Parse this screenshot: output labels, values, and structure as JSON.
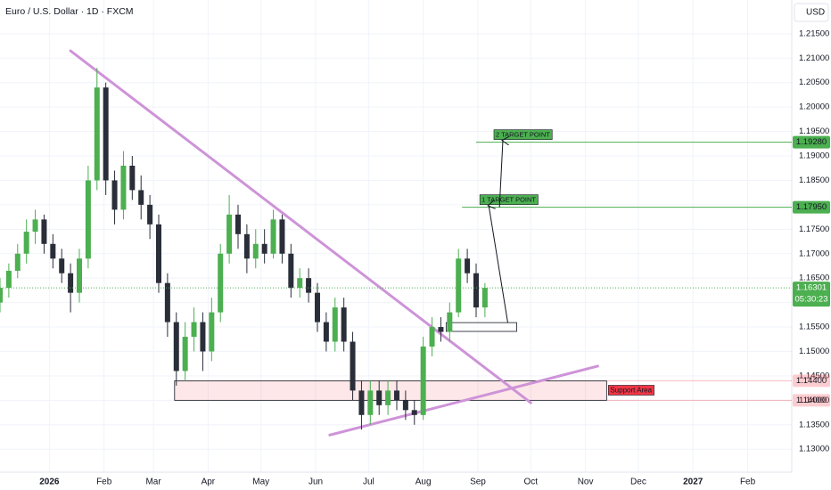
{
  "chart_data": {
    "type": "candlestick",
    "title": "Euro / U.S. Dollar · 1D · FXCM",
    "currency": "USD",
    "x": [
      -28,
      -23,
      -18,
      -13,
      -8,
      -3,
      2,
      7,
      12,
      17,
      22,
      27,
      32,
      37,
      42,
      47,
      52,
      57,
      62,
      67,
      72,
      77,
      82,
      87,
      92,
      97,
      102,
      107,
      112,
      117,
      122,
      127,
      132,
      137,
      142,
      147,
      152,
      157,
      162,
      167,
      172,
      177,
      182,
      187,
      192,
      197,
      202,
      207,
      212,
      217,
      222,
      227,
      232,
      237,
      242,
      247
    ],
    "open": [
      1.16,
      1.163,
      1.1665,
      1.17,
      1.1745,
      1.177,
      1.172,
      1.169,
      1.166,
      1.162,
      1.169,
      1.185,
      1.204,
      1.185,
      1.179,
      1.188,
      1.183,
      1.18,
      1.176,
      1.164,
      1.156,
      1.146,
      1.153,
      1.156,
      1.15,
      1.158,
      1.17,
      1.178,
      1.174,
      1.169,
      1.172,
      1.17,
      1.177,
      1.17,
      1.163,
      1.165,
      1.162,
      1.156,
      1.152,
      1.159,
      1.152,
      1.142,
      1.137,
      1.142,
      1.139,
      1.142,
      1.14,
      1.138,
      1.137,
      1.151,
      1.155,
      1.154,
      1.158,
      1.169,
      1.166,
      1.159
    ],
    "high": [
      1.165,
      1.168,
      1.172,
      1.177,
      1.179,
      1.178,
      1.174,
      1.171,
      1.168,
      1.171,
      1.188,
      1.208,
      1.205,
      1.187,
      1.191,
      1.19,
      1.186,
      1.182,
      1.178,
      1.166,
      1.158,
      1.156,
      1.159,
      1.158,
      1.161,
      1.172,
      1.182,
      1.18,
      1.176,
      1.175,
      1.175,
      1.179,
      1.178,
      1.172,
      1.167,
      1.167,
      1.164,
      1.158,
      1.161,
      1.161,
      1.154,
      1.144,
      1.144,
      1.144,
      1.144,
      1.144,
      1.142,
      1.14,
      1.153,
      1.157,
      1.157,
      1.16,
      1.171,
      1.171,
      1.168,
      1.164
    ],
    "low": [
      1.158,
      1.161,
      1.165,
      1.168,
      1.172,
      1.17,
      1.167,
      1.164,
      1.158,
      1.16,
      1.167,
      1.183,
      1.182,
      1.176,
      1.177,
      1.181,
      1.177,
      1.173,
      1.162,
      1.153,
      1.143,
      1.144,
      1.15,
      1.146,
      1.148,
      1.156,
      1.168,
      1.171,
      1.166,
      1.167,
      1.168,
      1.169,
      1.168,
      1.161,
      1.161,
      1.16,
      1.154,
      1.15,
      1.15,
      1.15,
      1.14,
      1.134,
      1.135,
      1.137,
      1.137,
      1.138,
      1.136,
      1.135,
      1.136,
      1.149,
      1.152,
      1.152,
      1.157,
      1.164,
      1.157,
      1.157
    ],
    "close": [
      1.163,
      1.1665,
      1.17,
      1.1745,
      1.177,
      1.172,
      1.169,
      1.166,
      1.162,
      1.169,
      1.185,
      1.204,
      1.185,
      1.179,
      1.188,
      1.183,
      1.18,
      1.176,
      1.164,
      1.156,
      1.146,
      1.153,
      1.156,
      1.15,
      1.158,
      1.17,
      1.178,
      1.174,
      1.169,
      1.172,
      1.17,
      1.177,
      1.17,
      1.163,
      1.165,
      1.162,
      1.156,
      1.152,
      1.159,
      1.152,
      1.142,
      1.137,
      1.142,
      1.139,
      1.142,
      1.14,
      1.138,
      1.137,
      1.151,
      1.155,
      1.154,
      1.158,
      1.169,
      1.166,
      1.159,
      1.163
    ],
    "up_color": "#4caf50",
    "down_color": "#2a2e39",
    "xlim": [
      -28,
      421
    ],
    "ylim": [
      1.1253,
      1.2219
    ],
    "grid": true,
    "xticks": [
      {
        "value": 0,
        "label": "2026"
      },
      {
        "value": 31,
        "label": "Feb"
      },
      {
        "value": 59,
        "label": "Mar"
      },
      {
        "value": 90,
        "label": "Apr"
      },
      {
        "value": 120,
        "label": "May"
      },
      {
        "value": 151,
        "label": "Jun"
      },
      {
        "value": 181,
        "label": "Jul"
      },
      {
        "value": 212,
        "label": "Aug"
      },
      {
        "value": 243,
        "label": "Sep"
      },
      {
        "value": 273,
        "label": "Oct"
      },
      {
        "value": 304,
        "label": "Nov"
      },
      {
        "value": 334,
        "label": "Dec"
      },
      {
        "value": 365,
        "label": "2027"
      },
      {
        "value": 396,
        "label": "Feb"
      }
    ],
    "yticks": [
      {
        "value": 1.13,
        "label": "1.13000"
      },
      {
        "value": 1.135,
        "label": "1.13500"
      },
      {
        "value": 1.14,
        "label": "1.14000"
      },
      {
        "value": 1.145,
        "label": "1.14500"
      },
      {
        "value": 1.15,
        "label": "1.15000"
      },
      {
        "value": 1.155,
        "label": "1.15500"
      },
      {
        "value": 1.16,
        "label": "1.16000"
      },
      {
        "value": 1.165,
        "label": "1.16500"
      },
      {
        "value": 1.17,
        "label": "1.17000"
      },
      {
        "value": 1.175,
        "label": "1.17500"
      },
      {
        "value": 1.18,
        "label": "1.18000"
      },
      {
        "value": 1.185,
        "label": "1.18500"
      },
      {
        "value": 1.19,
        "label": "1.19000"
      },
      {
        "value": 1.195,
        "label": "1.19500"
      },
      {
        "value": 1.2,
        "label": "1.20000"
      },
      {
        "value": 1.205,
        "label": "1.20500"
      },
      {
        "value": 1.21,
        "label": "1.21000"
      },
      {
        "value": 1.215,
        "label": "1.21500"
      }
    ],
    "targets": [
      {
        "name": "2 TARGET POINT",
        "value": 1.1928,
        "label": "1.19280",
        "from": 242,
        "color": "#4caf50"
      },
      {
        "name": "1 TARGET POINT",
        "value": 1.1795,
        "label": "1.17950",
        "from": 234,
        "color": "#4caf50"
      }
    ],
    "support": {
      "name": "Support Area",
      "low": {
        "value": 1.14,
        "label": "1.14000"
      },
      "high": {
        "value": 1.144,
        "label": "1.14400"
      },
      "from": 71,
      "to": 316,
      "color": "#f23645"
    },
    "entry_box": {
      "from": 225,
      "to": 265,
      "low": 1.1541,
      "high": 1.1559
    },
    "current_price": {
      "value": 1.16301,
      "label": "1.16301",
      "countdown": "05:30:23",
      "color": "#4caf50"
    },
    "trendlines": [
      {
        "x": [
          12,
          273
        ],
        "y": [
          1.2115,
          1.1395
        ],
        "color": "#ce93d8"
      },
      {
        "x": [
          159,
          311
        ],
        "y": [
          1.1329,
          1.147
        ],
        "color": "#ce93d8"
      }
    ]
  }
}
